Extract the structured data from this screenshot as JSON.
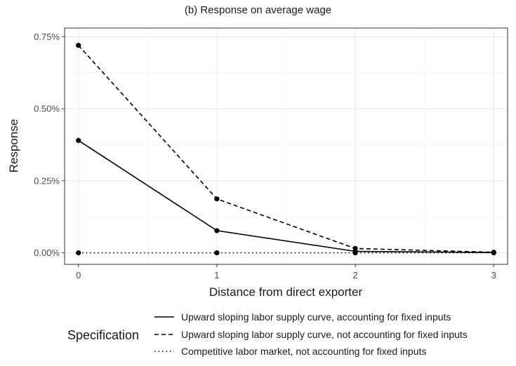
{
  "chart_data": {
    "type": "line",
    "title": "(b) Response on average wage",
    "xlabel": "Distance from direct exporter",
    "ylabel": "Response",
    "x": [
      0,
      1,
      2,
      3
    ],
    "xlim": [
      -0.1,
      3.1
    ],
    "ylim": [
      -0.0004,
      0.0078
    ],
    "x_ticks": [
      0,
      1,
      2,
      3
    ],
    "x_tick_labels": [
      "0",
      "1",
      "2",
      "3"
    ],
    "y_ticks": [
      0,
      0.0025,
      0.005,
      0.0075
    ],
    "y_tick_labels": [
      "0.00%",
      "0.25%",
      "0.50%",
      "0.75%"
    ],
    "grid": true,
    "legend_title": "Specification",
    "legend_position": "bottom",
    "series": [
      {
        "name": "Upward sloping labor supply curve, accounting for fixed inputs",
        "line_style": "solid",
        "values": [
          0.0039,
          0.00077,
          5e-05,
          1e-05
        ]
      },
      {
        "name": "Upward sloping labor supply curve, not accounting for fixed inputs",
        "line_style": "dashed",
        "values": [
          0.0072,
          0.00187,
          0.00015,
          2e-05
        ]
      },
      {
        "name": "Competitive labor market, not accounting for fixed inputs",
        "line_style": "dotted",
        "values": [
          0,
          0,
          0,
          0
        ]
      }
    ]
  }
}
